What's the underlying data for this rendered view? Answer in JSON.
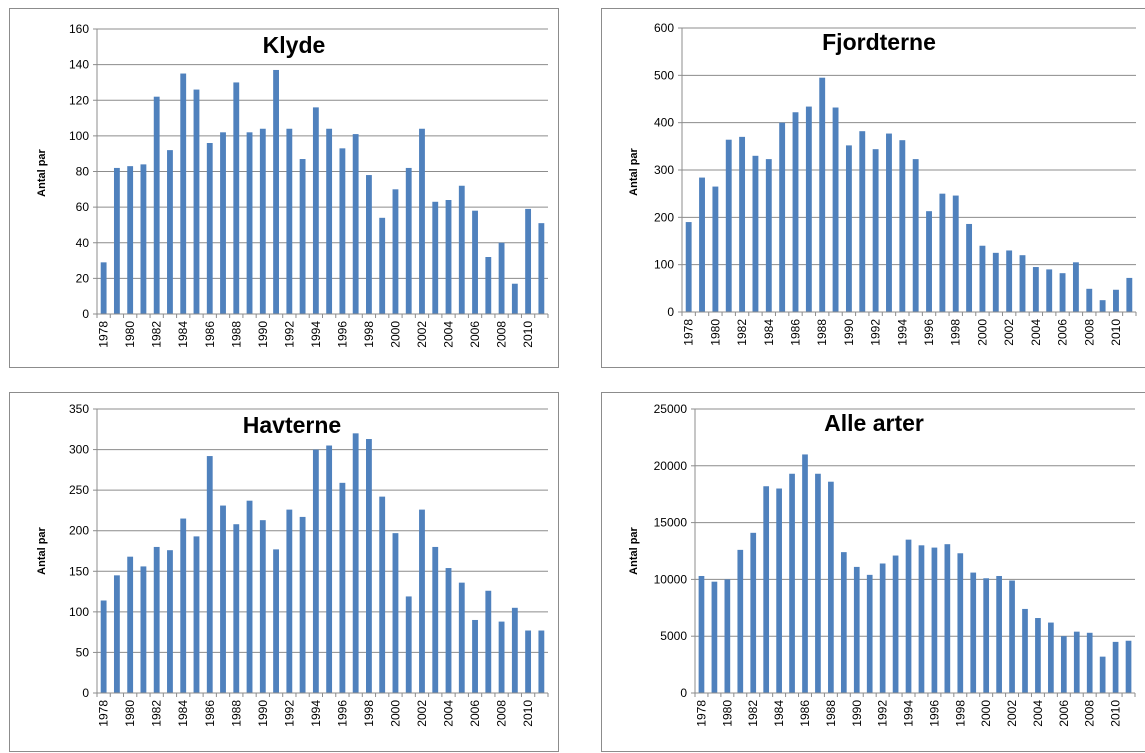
{
  "bar_color": "#4f81bd",
  "chart_data": [
    {
      "type": "bar",
      "title": "Klyde",
      "ylabel": "Antal par",
      "ylim": [
        0,
        160
      ],
      "yticks": [
        0,
        20,
        40,
        60,
        80,
        100,
        120,
        140,
        160
      ],
      "grid": true,
      "legend": "none",
      "categories": [
        "1978",
        "1979",
        "1980",
        "1981",
        "1982",
        "1983",
        "1984",
        "1985",
        "1986",
        "1987",
        "1988",
        "1989",
        "1990",
        "1991",
        "1992",
        "1993",
        "1994",
        "1995",
        "1996",
        "1997",
        "1998",
        "1999",
        "2000",
        "2001",
        "2002",
        "2003",
        "2004",
        "2005",
        "2006",
        "2007",
        "2008",
        "2009",
        "2010",
        "2011"
      ],
      "xtick_labels": [
        "1978",
        "1980",
        "1982",
        "1984",
        "1986",
        "1988",
        "1990",
        "1992",
        "1994",
        "1996",
        "1998",
        "2000",
        "2002",
        "2004",
        "2006",
        "2008",
        "2010"
      ],
      "values": [
        29,
        82,
        83,
        84,
        122,
        92,
        135,
        126,
        96,
        102,
        130,
        102,
        104,
        137,
        104,
        87,
        116,
        104,
        93,
        101,
        78,
        54,
        70,
        82,
        104,
        63,
        64,
        72,
        58,
        32,
        40,
        17,
        59,
        51
      ]
    },
    {
      "type": "bar",
      "title": "Fjordterne",
      "ylabel": "Antal par",
      "ylim": [
        0,
        600
      ],
      "yticks": [
        0,
        100,
        200,
        300,
        400,
        500,
        600
      ],
      "grid": true,
      "legend": "none",
      "categories": [
        "1978",
        "1979",
        "1980",
        "1981",
        "1982",
        "1983",
        "1984",
        "1985",
        "1986",
        "1987",
        "1988",
        "1989",
        "1990",
        "1991",
        "1992",
        "1993",
        "1994",
        "1995",
        "1996",
        "1997",
        "1998",
        "1999",
        "2000",
        "2001",
        "2002",
        "2003",
        "2004",
        "2005",
        "2006",
        "2007",
        "2008",
        "2009",
        "2010",
        "2011"
      ],
      "xtick_labels": [
        "1978",
        "1980",
        "1982",
        "1984",
        "1986",
        "1988",
        "1990",
        "1992",
        "1994",
        "1996",
        "1998",
        "2000",
        "2002",
        "2004",
        "2006",
        "2008",
        "2010"
      ],
      "values": [
        190,
        284,
        265,
        364,
        370,
        330,
        323,
        400,
        422,
        434,
        495,
        432,
        352,
        382,
        344,
        377,
        363,
        323,
        213,
        250,
        246,
        186,
        140,
        125,
        130,
        120,
        95,
        90,
        82,
        105,
        49,
        25,
        47,
        72
      ]
    },
    {
      "type": "bar",
      "title": "Havterne",
      "ylabel": "Antal par",
      "ylim": [
        0,
        350
      ],
      "yticks": [
        0,
        50,
        100,
        150,
        200,
        250,
        300,
        350
      ],
      "grid": true,
      "legend": "none",
      "categories": [
        "1978",
        "1979",
        "1980",
        "1981",
        "1982",
        "1983",
        "1984",
        "1985",
        "1986",
        "1987",
        "1988",
        "1989",
        "1990",
        "1991",
        "1992",
        "1993",
        "1994",
        "1995",
        "1996",
        "1997",
        "1998",
        "1999",
        "2000",
        "2001",
        "2002",
        "2003",
        "2004",
        "2005",
        "2006",
        "2007",
        "2008",
        "2009",
        "2010",
        "2011"
      ],
      "xtick_labels": [
        "1978",
        "1980",
        "1982",
        "1984",
        "1986",
        "1988",
        "1990",
        "1992",
        "1994",
        "1996",
        "1998",
        "2000",
        "2002",
        "2004",
        "2006",
        "2008",
        "2010"
      ],
      "values": [
        114,
        145,
        168,
        156,
        180,
        176,
        215,
        193,
        292,
        231,
        208,
        237,
        213,
        177,
        226,
        217,
        300,
        305,
        259,
        320,
        313,
        242,
        197,
        119,
        226,
        180,
        154,
        136,
        90,
        126,
        88,
        105,
        77,
        77
      ]
    },
    {
      "type": "bar",
      "title": "Alle arter",
      "ylabel": "Antal par",
      "ylim": [
        0,
        25000
      ],
      "yticks": [
        0,
        5000,
        10000,
        15000,
        20000,
        25000
      ],
      "grid": true,
      "legend": "none",
      "categories": [
        "1978",
        "1979",
        "1980",
        "1981",
        "1982",
        "1983",
        "1984",
        "1985",
        "1986",
        "1987",
        "1988",
        "1989",
        "1990",
        "1991",
        "1992",
        "1993",
        "1994",
        "1995",
        "1996",
        "1997",
        "1998",
        "1999",
        "2000",
        "2001",
        "2002",
        "2003",
        "2004",
        "2005",
        "2006",
        "2007",
        "2008",
        "2009",
        "2010",
        "2011"
      ],
      "xtick_labels": [
        "1978",
        "1980",
        "1982",
        "1984",
        "1986",
        "1988",
        "1990",
        "1992",
        "1994",
        "1996",
        "1998",
        "2000",
        "2002",
        "2004",
        "2006",
        "2008",
        "2010"
      ],
      "values": [
        10300,
        9800,
        10000,
        12600,
        14100,
        18200,
        18000,
        19300,
        21000,
        19300,
        18600,
        12400,
        11100,
        10400,
        11400,
        12100,
        13500,
        13000,
        12800,
        13100,
        12300,
        10600,
        10100,
        10300,
        9900,
        7400,
        6600,
        6200,
        5000,
        5400,
        5300,
        3200,
        4500,
        4600
      ]
    }
  ]
}
